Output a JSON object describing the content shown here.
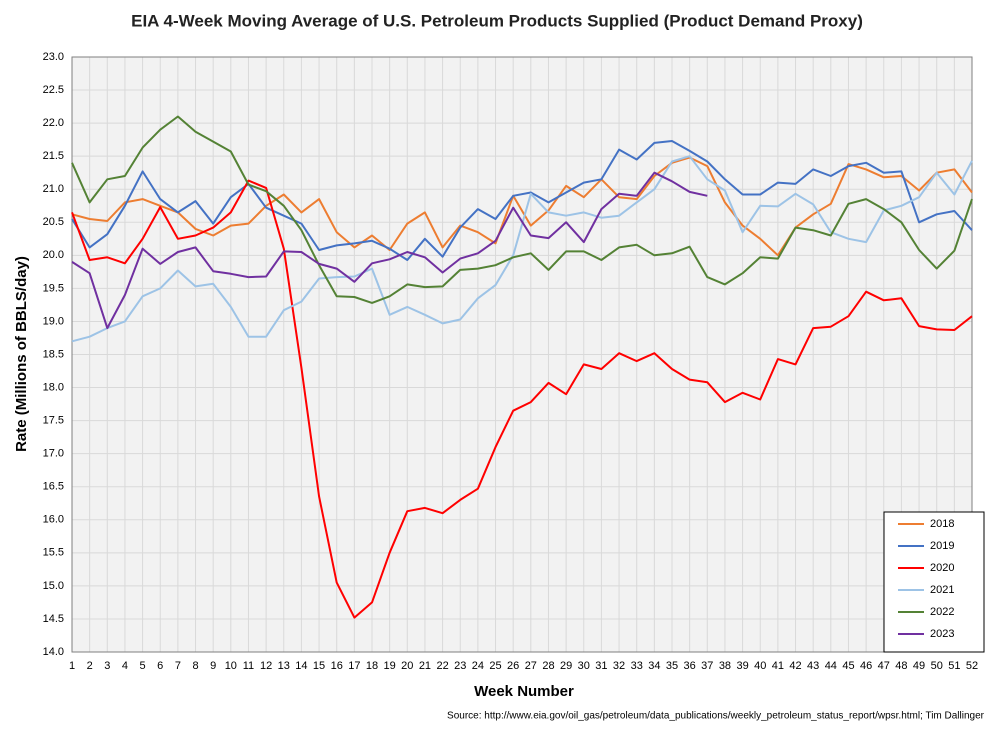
{
  "chart_data": {
    "type": "line",
    "title": "EIA 4-Week Moving Average of U.S. Petroleum Products Supplied (Product Demand Proxy)",
    "xlabel": "Week Number",
    "ylabel": "Rate (Millions of BBLS/day)",
    "source": "Source: http://www.eia.gov/oil_gas/petroleum/data_publications/weekly_petroleum_status_report/wpsr.html; Tim Dallinger",
    "grid": true,
    "legend": "lower right",
    "x": [
      1,
      2,
      3,
      4,
      5,
      6,
      7,
      8,
      9,
      10,
      11,
      12,
      13,
      14,
      15,
      16,
      17,
      18,
      19,
      20,
      21,
      22,
      23,
      24,
      25,
      26,
      27,
      28,
      29,
      30,
      31,
      32,
      33,
      34,
      35,
      36,
      37,
      38,
      39,
      40,
      41,
      42,
      43,
      44,
      45,
      46,
      47,
      48,
      49,
      50,
      51,
      52
    ],
    "xlim": [
      1,
      52
    ],
    "xticks": [
      1,
      2,
      3,
      4,
      5,
      6,
      7,
      8,
      9,
      10,
      11,
      12,
      13,
      14,
      15,
      16,
      17,
      18,
      19,
      20,
      21,
      22,
      23,
      24,
      25,
      26,
      27,
      28,
      29,
      30,
      31,
      32,
      33,
      34,
      35,
      36,
      37,
      38,
      39,
      40,
      41,
      42,
      43,
      44,
      45,
      46,
      47,
      48,
      49,
      50,
      51,
      52
    ],
    "ylim": [
      14,
      23
    ],
    "yticks": [
      {
        "value": 14,
        "label": "14.0"
      },
      14.5,
      {
        "value": 15,
        "label": "15.0"
      },
      15.5,
      {
        "value": 16,
        "label": "16.0"
      },
      16.5,
      {
        "value": 17,
        "label": "17.0"
      },
      17.5,
      {
        "value": 18,
        "label": "18.0"
      },
      18.5,
      {
        "value": 19,
        "label": "19.0"
      },
      19.5,
      {
        "value": 20,
        "label": "20.0"
      },
      20.5,
      {
        "value": 21,
        "label": "21.0"
      },
      21.5,
      {
        "value": 22,
        "label": "22.0"
      },
      22.5,
      {
        "value": 23,
        "label": "23.0"
      }
    ],
    "series": [
      {
        "name": "2018",
        "color": "#ed7d31",
        "values": [
          20.62,
          20.55,
          20.52,
          20.8,
          20.85,
          20.75,
          20.65,
          20.4,
          20.3,
          20.45,
          20.48,
          20.75,
          20.92,
          20.65,
          20.85,
          20.35,
          20.12,
          20.3,
          20.08,
          20.48,
          20.65,
          20.12,
          20.45,
          20.35,
          20.18,
          20.9,
          20.45,
          20.68,
          21.05,
          20.88,
          21.15,
          20.88,
          20.85,
          21.2,
          21.4,
          21.48,
          21.35,
          20.8,
          20.45,
          20.25,
          20.0,
          20.42,
          20.62,
          20.78,
          21.38,
          21.3,
          21.18,
          21.2,
          20.98,
          21.25,
          21.3,
          20.95
        ]
      },
      {
        "name": "2019",
        "color": "#4472c4",
        "values": [
          20.55,
          20.12,
          20.32,
          20.75,
          21.27,
          20.85,
          20.65,
          20.82,
          20.48,
          20.88,
          21.08,
          20.72,
          20.6,
          20.48,
          20.08,
          20.15,
          20.18,
          20.22,
          20.1,
          19.93,
          20.25,
          19.98,
          20.42,
          20.7,
          20.55,
          20.9,
          20.95,
          20.8,
          20.95,
          21.1,
          21.15,
          21.6,
          21.45,
          21.7,
          21.73,
          21.58,
          21.42,
          21.15,
          20.92,
          20.92,
          21.1,
          21.08,
          21.3,
          21.2,
          21.35,
          21.4,
          21.25,
          21.27,
          20.5,
          20.62,
          20.67,
          20.38
        ]
      },
      {
        "name": "2020",
        "color": "#ff0000",
        "values": [
          20.65,
          19.93,
          19.97,
          19.88,
          20.25,
          20.73,
          20.25,
          20.3,
          20.42,
          20.65,
          21.13,
          21.02,
          20.1,
          18.3,
          16.35,
          15.05,
          14.52,
          14.75,
          15.5,
          16.13,
          16.18,
          16.1,
          16.3,
          16.47,
          17.1,
          17.65,
          17.78,
          18.07,
          17.9,
          18.35,
          18.28,
          18.52,
          18.4,
          18.52,
          18.28,
          18.12,
          18.08,
          17.78,
          17.92,
          17.82,
          18.43,
          18.35,
          18.9,
          18.92,
          19.08,
          19.45,
          19.32,
          19.35,
          18.93,
          18.88,
          18.87,
          19.08
        ]
      },
      {
        "name": "2021",
        "color": "#9dc3e6",
        "values": [
          18.7,
          18.77,
          18.9,
          19.0,
          19.38,
          19.5,
          19.77,
          19.53,
          19.57,
          19.22,
          18.77,
          18.77,
          19.17,
          19.3,
          19.65,
          19.67,
          19.68,
          19.8,
          19.1,
          19.22,
          19.1,
          18.97,
          19.03,
          19.35,
          19.55,
          20.0,
          20.93,
          20.65,
          20.6,
          20.65,
          20.57,
          20.6,
          20.8,
          21.0,
          21.42,
          21.5,
          21.15,
          20.98,
          20.35,
          20.75,
          20.74,
          20.93,
          20.77,
          20.35,
          20.25,
          20.2,
          20.68,
          20.75,
          20.88,
          21.25,
          20.92,
          21.43
        ]
      },
      {
        "name": "2022",
        "color": "#548235",
        "values": [
          21.4,
          20.8,
          21.15,
          21.2,
          21.63,
          21.9,
          22.1,
          21.87,
          21.72,
          21.57,
          21.07,
          20.97,
          20.75,
          20.38,
          19.85,
          19.38,
          19.37,
          19.28,
          19.38,
          19.56,
          19.52,
          19.53,
          19.78,
          19.8,
          19.85,
          19.97,
          20.03,
          19.78,
          20.06,
          20.06,
          19.93,
          20.12,
          20.16,
          20.0,
          20.03,
          20.13,
          19.67,
          19.56,
          19.73,
          19.97,
          19.95,
          20.42,
          20.38,
          20.3,
          20.78,
          20.85,
          20.7,
          20.5,
          20.08,
          19.8,
          20.07,
          20.85
        ]
      },
      {
        "name": "2023",
        "color": "#7030a0",
        "values": [
          19.9,
          19.73,
          18.9,
          19.4,
          20.1,
          19.87,
          20.05,
          20.12,
          19.76,
          19.72,
          19.67,
          19.68,
          20.06,
          20.05,
          19.87,
          19.8,
          19.6,
          19.88,
          19.94,
          20.05,
          19.97,
          19.74,
          19.95,
          20.03,
          20.22,
          20.72,
          20.3,
          20.26,
          20.5,
          20.2,
          20.7,
          20.93,
          20.9,
          21.25,
          21.12,
          20.96,
          20.9,
          null,
          null,
          null,
          null,
          null,
          null,
          null,
          null,
          null,
          null,
          null,
          null,
          null,
          null,
          null
        ]
      }
    ]
  }
}
